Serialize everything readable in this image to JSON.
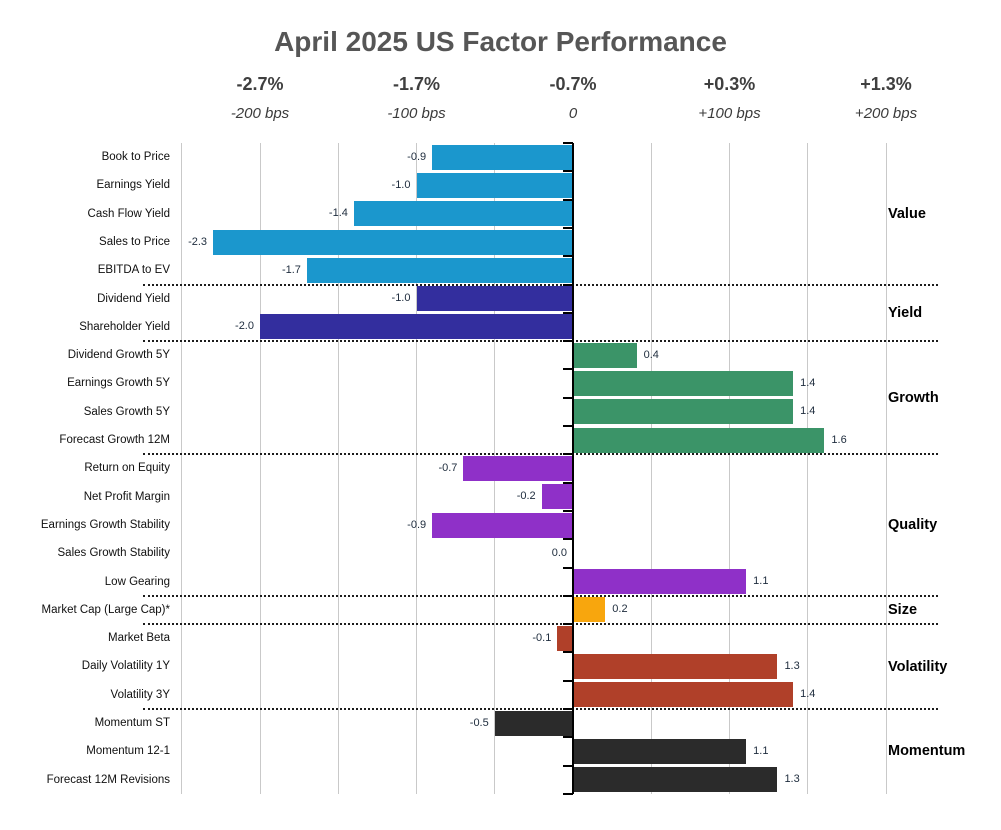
{
  "title": "April 2025 US Factor Performance",
  "chart_data": {
    "type": "bar",
    "orientation": "horizontal",
    "title": "April 2025 US Factor Performance",
    "axis_ticks": [
      {
        "pct": "-2.7%",
        "bps": "-200 bps",
        "value": -2
      },
      {
        "pct": "-1.7%",
        "bps": "-100 bps",
        "value": -1
      },
      {
        "pct": "-0.7%",
        "bps": "0",
        "value": 0
      },
      {
        "pct": "+0.3%",
        "bps": "+100 bps",
        "value": 1
      },
      {
        "pct": "+1.3%",
        "bps": "+200 bps",
        "value": 2
      }
    ],
    "xlim": [
      -2.53,
      2.0
    ],
    "grid": {
      "min": -2.5,
      "max": 2.0,
      "step": 0.5,
      "show": true
    },
    "legend_position": "right-group-labels",
    "groups": [
      {
        "name": "Value",
        "color": "#1b97cd",
        "items": [
          {
            "label": "Book to Price",
            "value": -0.9
          },
          {
            "label": "Earnings Yield",
            "value": -1.0
          },
          {
            "label": "Cash Flow Yield",
            "value": -1.4
          },
          {
            "label": "Sales to Price",
            "value": -2.3
          },
          {
            "label": "EBITDA to EV",
            "value": -1.7
          }
        ]
      },
      {
        "name": "Yield",
        "color": "#332e9e",
        "items": [
          {
            "label": "Dividend Yield",
            "value": -1.0
          },
          {
            "label": "Shareholder Yield",
            "value": -2.0
          }
        ]
      },
      {
        "name": "Growth",
        "color": "#3b9468",
        "items": [
          {
            "label": "Dividend Growth 5Y",
            "value": 0.4
          },
          {
            "label": "Earnings Growth 5Y",
            "value": 1.4
          },
          {
            "label": "Sales Growth 5Y",
            "value": 1.4
          },
          {
            "label": "Forecast Growth 12M",
            "value": 1.6
          }
        ]
      },
      {
        "name": "Quality",
        "color": "#8f30c8",
        "items": [
          {
            "label": "Return on Equity",
            "value": -0.7
          },
          {
            "label": "Net Profit Margin",
            "value": -0.2
          },
          {
            "label": "Earnings Growth Stability",
            "value": -0.9
          },
          {
            "label": "Sales Growth Stability",
            "value": 0.0
          },
          {
            "label": "Low Gearing",
            "value": 1.1
          }
        ]
      },
      {
        "name": "Size",
        "color": "#f8a60d",
        "items": [
          {
            "label": "Market Cap (Large Cap)*",
            "value": 0.2
          }
        ]
      },
      {
        "name": "Volatility",
        "color": "#b04029",
        "items": [
          {
            "label": "Market Beta",
            "value": -0.1
          },
          {
            "label": "Daily Volatility 1Y",
            "value": 1.3
          },
          {
            "label": "Volatility 3Y",
            "value": 1.4
          }
        ]
      },
      {
        "name": "Momentum",
        "color": "#2b2b2b",
        "items": [
          {
            "label": "Momentum ST",
            "value": -0.5
          },
          {
            "label": "Momentum 12-1",
            "value": 1.1
          },
          {
            "label": "Forecast 12M Revisions",
            "value": 1.3
          }
        ]
      }
    ]
  },
  "colors": {
    "title": "#565656",
    "axis_text": "#3f3f3f",
    "grid": "#c9c9c9",
    "zero_axis": "#000000",
    "value_label": "#1d2b3c",
    "category_label": "#101010",
    "group_label": "#000000",
    "separator": "#1c1c1c"
  }
}
